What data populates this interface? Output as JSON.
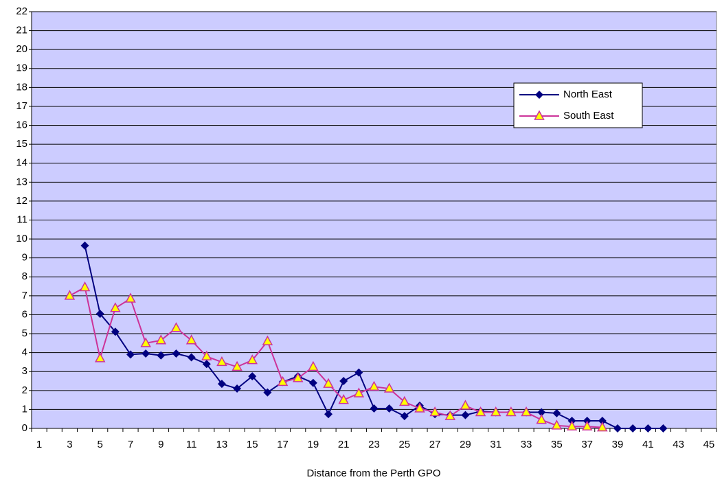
{
  "chart_data": {
    "type": "line",
    "x_label": "Distance from the Perth GPO",
    "categories": [
      1,
      null,
      3,
      null,
      5,
      null,
      7,
      null,
      9,
      null,
      11,
      null,
      13,
      null,
      15,
      null,
      17,
      null,
      19,
      null,
      21,
      null,
      23,
      null,
      25,
      null,
      27,
      null,
      29,
      null,
      31,
      null,
      33,
      null,
      35,
      null,
      37,
      null,
      39,
      null,
      41,
      null,
      43,
      null,
      45
    ],
    "series": [
      {
        "name": "North East",
        "color": "#000080",
        "marker": "diamond",
        "values": [
          null,
          null,
          null,
          9.65,
          6.05,
          5.1,
          3.9,
          3.95,
          3.85,
          3.95,
          3.75,
          3.4,
          2.35,
          2.1,
          2.75,
          1.9,
          2.45,
          2.75,
          2.4,
          0.75,
          2.5,
          2.95,
          1.05,
          1.05,
          0.65,
          1.2,
          0.75,
          0.7,
          0.7,
          0.9,
          0.85,
          0.85,
          0.85,
          0.85,
          0.8,
          0.4,
          0.4,
          0.4,
          0,
          0,
          0,
          0,
          null,
          null,
          null
        ]
      },
      {
        "name": "South East",
        "color": "#cc3399",
        "marker": "triangle",
        "values": [
          null,
          null,
          7.0,
          7.45,
          3.7,
          6.35,
          6.85,
          4.5,
          4.65,
          5.3,
          4.65,
          3.8,
          3.5,
          3.25,
          3.6,
          4.6,
          2.45,
          2.65,
          3.25,
          2.35,
          1.5,
          1.85,
          2.2,
          2.1,
          1.4,
          1.05,
          0.85,
          0.65,
          1.2,
          0.85,
          0.85,
          0.85,
          0.85,
          0.45,
          0.15,
          0.1,
          0.1,
          0.05,
          null,
          null,
          null,
          null,
          null,
          null,
          null
        ]
      }
    ],
    "ylim": [
      0,
      22
    ],
    "yticks": [
      0,
      1,
      2,
      3,
      4,
      5,
      6,
      7,
      8,
      9,
      10,
      11,
      12,
      13,
      14,
      15,
      16,
      17,
      18,
      19,
      20,
      21,
      22
    ],
    "grid": true,
    "legend": "right"
  }
}
